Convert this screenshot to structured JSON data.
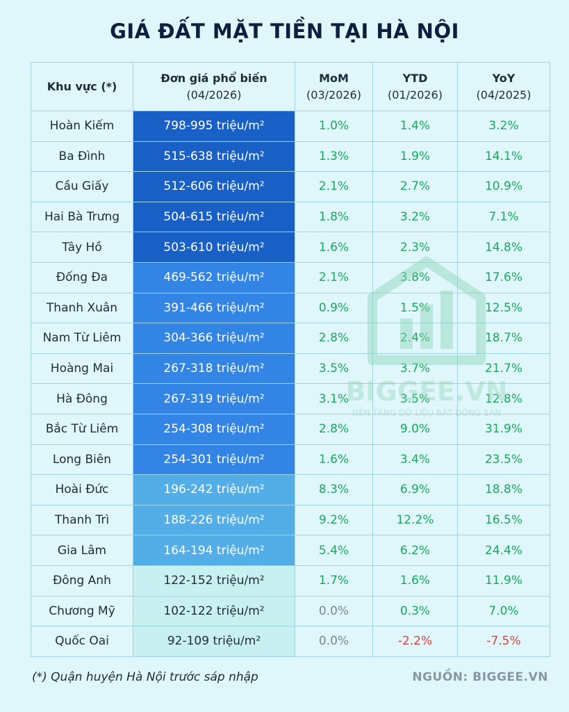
{
  "title": "GIÁ ĐẤT MẶT TIỀN TẠI HÀ NỘI",
  "headers": {
    "region": "Khu vực (*)",
    "price_main": "Đơn giá phổ biến",
    "price_sub": "(04/2026)",
    "mom_main": "MoM",
    "mom_sub": "(03/2026)",
    "ytd_main": "YTD",
    "ytd_sub": "(01/2026)",
    "yoy_main": "YoY",
    "yoy_sub": "(04/2025)"
  },
  "rows": [
    {
      "region": "Hoàn Kiếm",
      "price": "798-995 triệu/m²",
      "mom": "1.0%",
      "ytd": "1.4%",
      "yoy": "3.2%"
    },
    {
      "region": "Ba Đình",
      "price": "515-638 triệu/m²",
      "mom": "1.3%",
      "ytd": "1.9%",
      "yoy": "14.1%"
    },
    {
      "region": "Cầu Giấy",
      "price": "512-606 triệu/m²",
      "mom": "2.1%",
      "ytd": "2.7%",
      "yoy": "10.9%"
    },
    {
      "region": "Hai Bà Trưng",
      "price": "504-615 triệu/m²",
      "mom": "1.8%",
      "ytd": "3.2%",
      "yoy": "7.1%"
    },
    {
      "region": "Tây Hồ",
      "price": "503-610 triệu/m²",
      "mom": "1.6%",
      "ytd": "2.3%",
      "yoy": "14.8%"
    },
    {
      "region": "Đống Đa",
      "price": "469-562 triệu/m²",
      "mom": "2.1%",
      "ytd": "3.8%",
      "yoy": "17.6%"
    },
    {
      "region": "Thanh Xuân",
      "price": "391-466 triệu/m²",
      "mom": "0.9%",
      "ytd": "1.5%",
      "yoy": "12.5%"
    },
    {
      "region": "Nam Từ Liêm",
      "price": "304-366 triệu/m²",
      "mom": "2.8%",
      "ytd": "2.4%",
      "yoy": "18.7%"
    },
    {
      "region": "Hoàng Mai",
      "price": "267-318 triệu/m²",
      "mom": "3.5%",
      "ytd": "3.7%",
      "yoy": "21.7%"
    },
    {
      "region": "Hà Đông",
      "price": "267-319 triệu/m²",
      "mom": "3.1%",
      "ytd": "3.5%",
      "yoy": "12.8%"
    },
    {
      "region": "Bắc Từ Liêm",
      "price": "254-308 triệu/m²",
      "mom": "2.8%",
      "ytd": "9.0%",
      "yoy": "31.9%"
    },
    {
      "region": "Long Biên",
      "price": "254-301 triệu/m²",
      "mom": "1.6%",
      "ytd": "3.4%",
      "yoy": "23.5%"
    },
    {
      "region": "Hoài Đức",
      "price": "196-242 triệu/m²",
      "mom": "8.3%",
      "ytd": "6.9%",
      "yoy": "18.8%"
    },
    {
      "region": "Thanh Trì",
      "price": "188-226 triệu/m²",
      "mom": "9.2%",
      "ytd": "12.2%",
      "yoy": "16.5%"
    },
    {
      "region": "Gia Lâm",
      "price": "164-194 triệu/m²",
      "mom": "5.4%",
      "ytd": "6.2%",
      "yoy": "24.4%"
    },
    {
      "region": "Đông Anh",
      "price": "122-152 triệu/m²",
      "mom": "1.7%",
      "ytd": "1.6%",
      "yoy": "11.9%"
    },
    {
      "region": "Chương Mỹ",
      "price": "102-122 triệu/m²",
      "mom": "0.0%",
      "ytd": "0.3%",
      "yoy": "7.0%"
    },
    {
      "region": "Quốc Oai",
      "price": "92-109 triệu/m²",
      "mom": "0.0%",
      "ytd": "-2.2%",
      "yoy": "-7.5%"
    }
  ],
  "watermark": {
    "brand": "BIGGEE.VN",
    "tagline": "NỀN TẢNG DỮ LIỆU BẤT ĐỘNG SẢN",
    "icon": "house-bar-chart-icon"
  },
  "footnote": "(*) Quận huyện Hà Nội trước sáp nhập",
  "source": "NGUỒN: BIGGEE.VN",
  "colors": {
    "tier1": "#1860c6",
    "tier2": "#3285e4",
    "tier3": "#53aee8",
    "tier4": "#c8f0f0",
    "positive": "#17a85a",
    "neutral": "#7b8593",
    "negative": "#e23b3b"
  }
}
